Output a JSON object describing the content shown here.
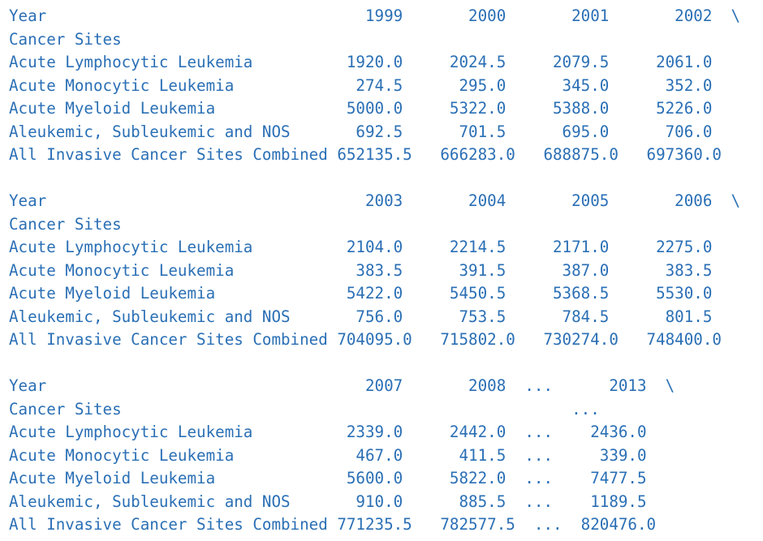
{
  "blocks": [
    {
      "header": "Year                                  1999       2000       2001       2002  \\",
      "index_label": "Cancer Sites",
      "rows": [
        "Acute Lymphocytic Leukemia          1920.0     2024.5     2079.5     2061.0",
        "Acute Monocytic Leukemia             274.5      295.0      345.0      352.0",
        "Acute Myeloid Leukemia              5000.0     5322.0     5388.0     5226.0",
        "Aleukemic, Subleukemic and NOS       692.5      701.5      695.0      706.0",
        "All Invasive Cancer Sites Combined 652135.5   666283.0   688875.0   697360.0"
      ]
    },
    {
      "header": "Year                                  2003       2004       2005       2006  \\",
      "index_label": "Cancer Sites",
      "rows": [
        "Acute Lymphocytic Leukemia          2104.0     2214.5     2171.0     2275.0",
        "Acute Monocytic Leukemia             383.5      391.5      387.0      383.5",
        "Acute Myeloid Leukemia              5422.0     5450.5     5368.5     5530.0",
        "Aleukemic, Subleukemic and NOS       756.0      753.5      784.5      801.5",
        "All Invasive Cancer Sites Combined 704095.0   715802.0   730274.0   748400.0"
      ]
    },
    {
      "header": "Year                                  2007       2008  ...      2013  \\",
      "index_label": "Cancer Sites                                                ...",
      "rows": [
        "Acute Lymphocytic Leukemia          2339.0     2442.0  ...    2436.0",
        "Acute Monocytic Leukemia             467.0      411.5  ...     339.0",
        "Acute Myeloid Leukemia              5600.0     5822.0  ...    7477.5",
        "Aleukemic, Subleukemic and NOS       910.0      885.5  ...    1189.5",
        "All Invasive Cancer Sites Combined 771235.5   782577.5  ...  820476.0"
      ]
    }
  ]
}
